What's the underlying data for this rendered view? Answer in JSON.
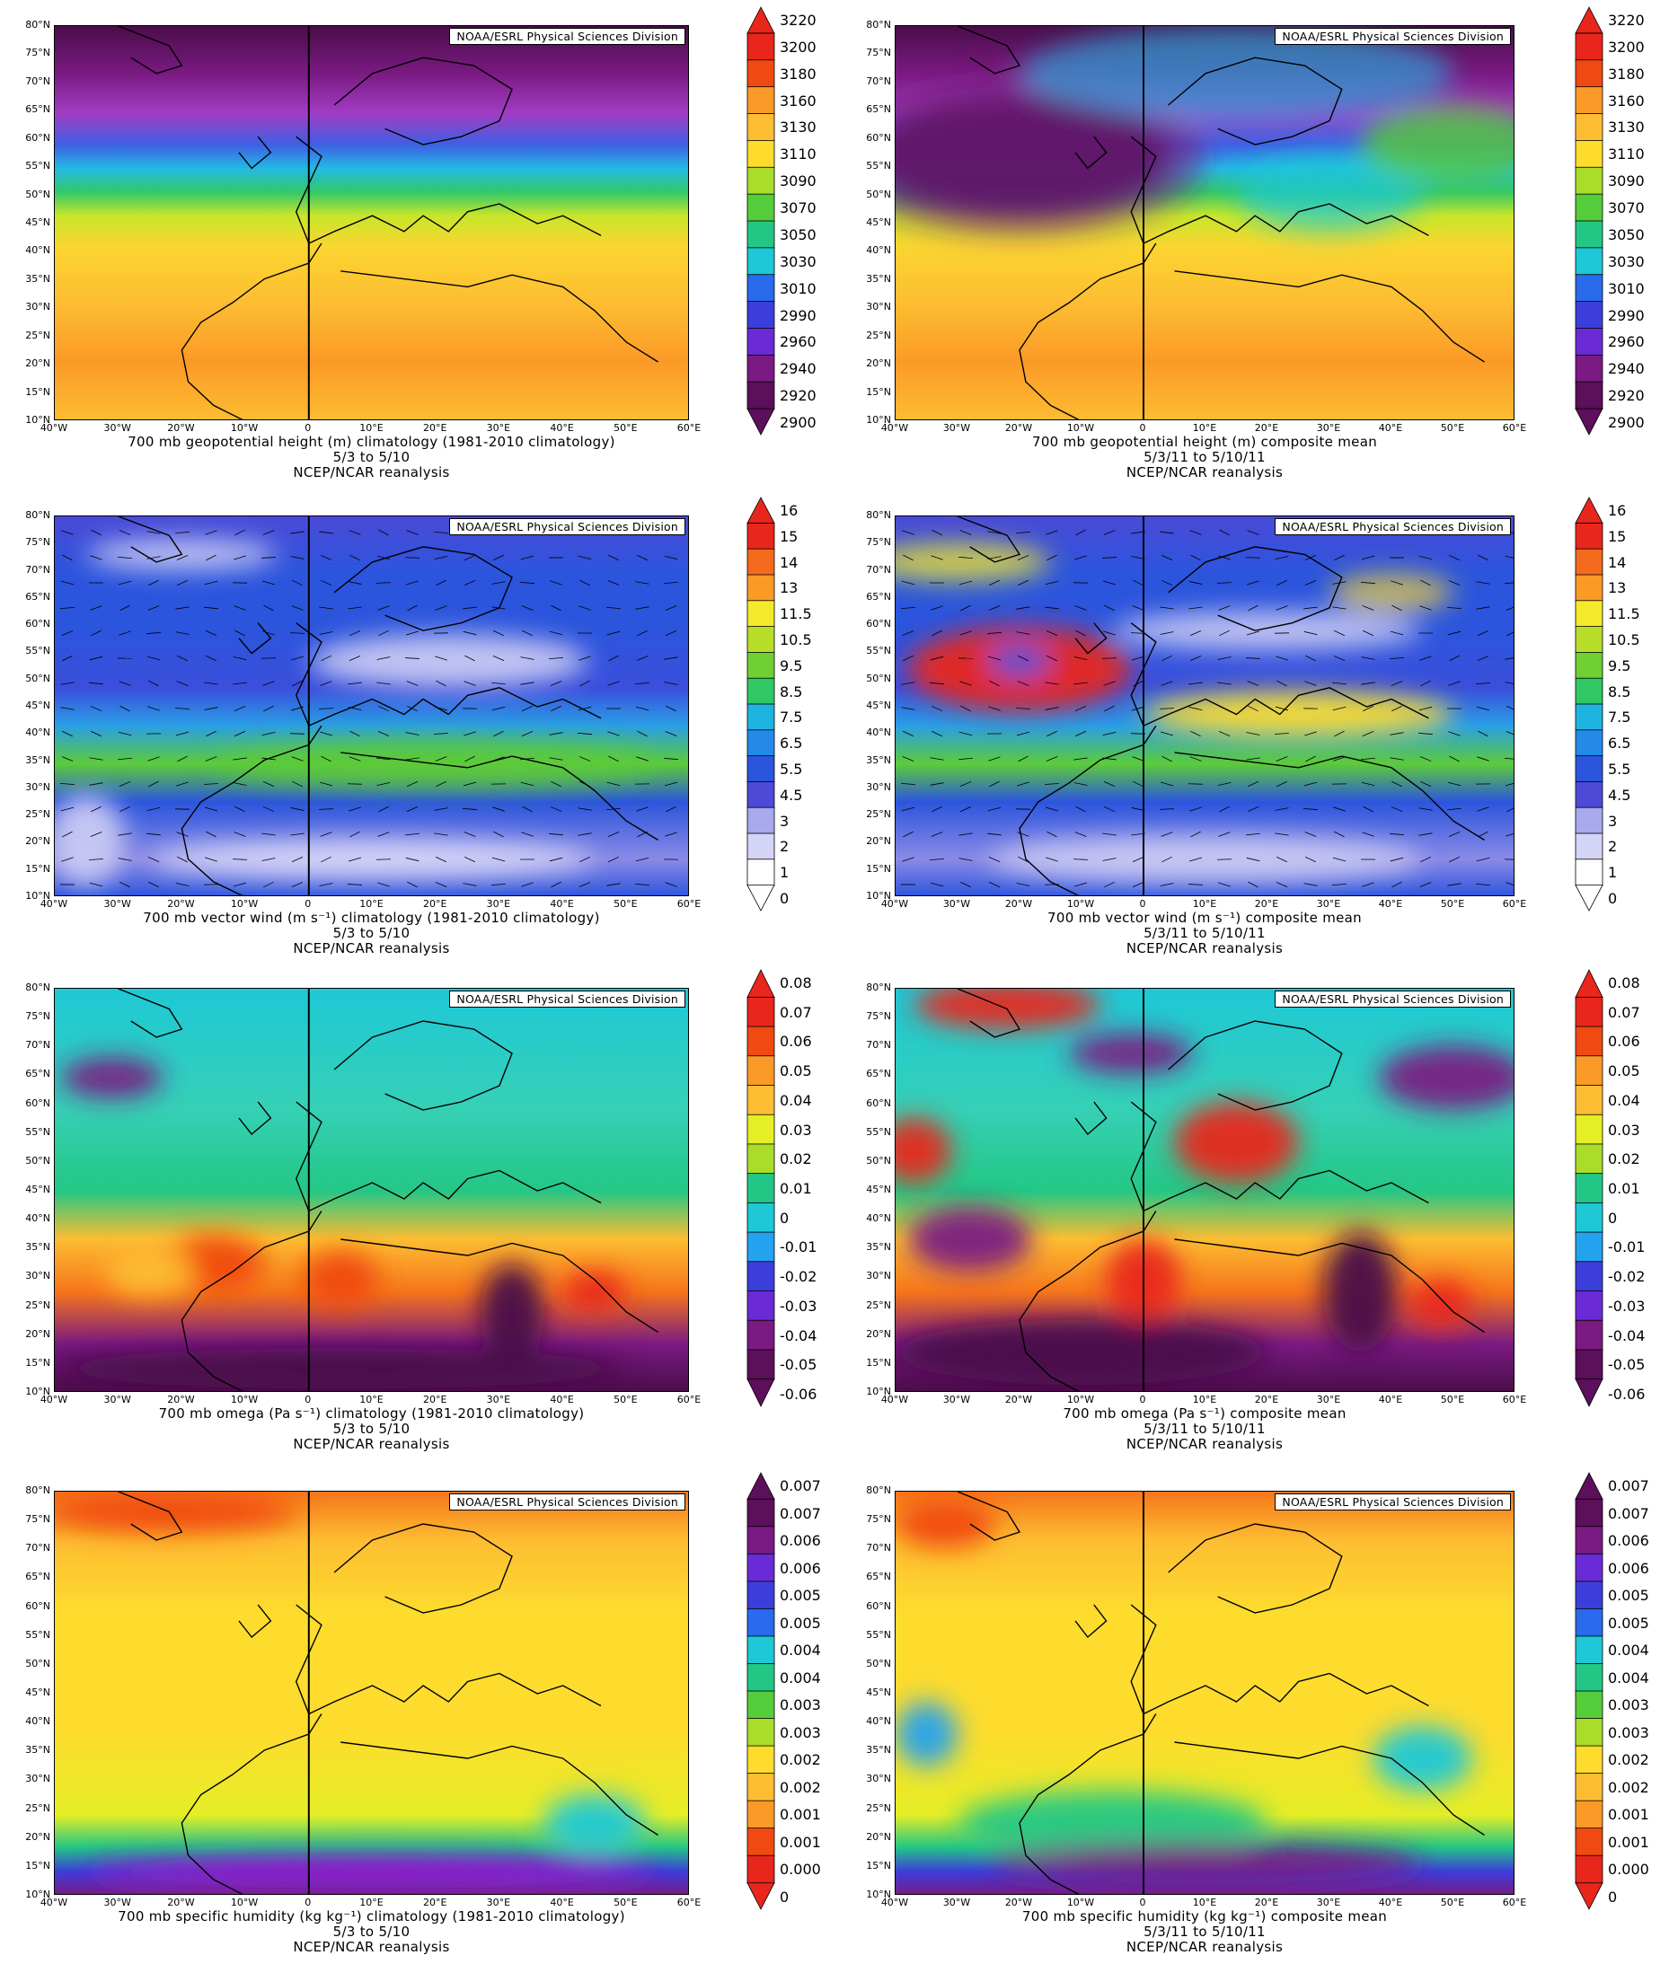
{
  "credit": "NOAA/ESRL Physical Sciences Division",
  "source": "NCEP/NCAR reanalysis",
  "lat_labels": [
    "80°N",
    "75°N",
    "70°N",
    "65°N",
    "60°N",
    "55°N",
    "50°N",
    "45°N",
    "40°N",
    "35°N",
    "30°N",
    "25°N",
    "20°N",
    "15°N",
    "10°N"
  ],
  "lon_labels": [
    "40°W",
    "30°W",
    "20°W",
    "10°W",
    "0",
    "10°E",
    "20°E",
    "30°E",
    "40°E",
    "50°E",
    "60°E"
  ],
  "rows": [
    {
      "variable": "geopotential-height",
      "scale": "rainbow",
      "colorbar": [
        "3220",
        "3200",
        "3180",
        "3160",
        "3130",
        "3110",
        "3090",
        "3070",
        "3050",
        "3030",
        "3010",
        "2990",
        "2960",
        "2940",
        "2920",
        "2900"
      ],
      "left": {
        "title": "700 mb geopotential height (m) climatology (1981-2010 climatology)",
        "dates": "5/3  to 5/10"
      },
      "right": {
        "title": "700 mb geopotential height (m) composite mean",
        "dates": "5/3/11  to 5/10/11"
      }
    },
    {
      "variable": "vector-wind",
      "scale": "wind",
      "colorbar": [
        "16",
        "15",
        "14",
        "13",
        "11.5",
        "10.5",
        "9.5",
        "8.5",
        "7.5",
        "6.5",
        "5.5",
        "4.5",
        "3",
        "2",
        "1",
        "0"
      ],
      "left": {
        "title": "700 mb vector wind (m s⁻¹) climatology (1981-2010 climatology)",
        "dates": "5/3  to 5/10"
      },
      "right": {
        "title": "700 mb vector wind (m s⁻¹) composite mean",
        "dates": "5/3/11  to 5/10/11"
      }
    },
    {
      "variable": "omega",
      "scale": "rainbow",
      "colorbar": [
        "0.08",
        "0.07",
        "0.06",
        "0.05",
        "0.04",
        "0.03",
        "0.02",
        "0.01",
        "0",
        "-0.01",
        "-0.02",
        "-0.03",
        "-0.04",
        "-0.05",
        "-0.06"
      ],
      "left": {
        "title": "700 mb omega (Pa s⁻¹) climatology (1981-2010 climatology)",
        "dates": "5/3  to 5/10"
      },
      "right": {
        "title": "700 mb omega (Pa s⁻¹) composite mean",
        "dates": "5/3/11  to 5/10/11"
      }
    },
    {
      "variable": "specific-humidity",
      "scale": "humidity",
      "colorbar": [
        "0.007",
        "0.007",
        "0.006",
        "0.006",
        "0.005",
        "0.005",
        "0.004",
        "0.004",
        "0.003",
        "0.003",
        "0.002",
        "0.002",
        "0.001",
        "0.001",
        "0.000",
        "0"
      ],
      "left": {
        "title": "700 mb specific humidity (kg kg⁻¹) climatology (1981-2010 climatology)",
        "dates": "5/3  to 5/10"
      },
      "right": {
        "title": "700 mb specific humidity (kg kg⁻¹) composite mean",
        "dates": "5/3/11  to 5/10/11"
      }
    }
  ]
}
